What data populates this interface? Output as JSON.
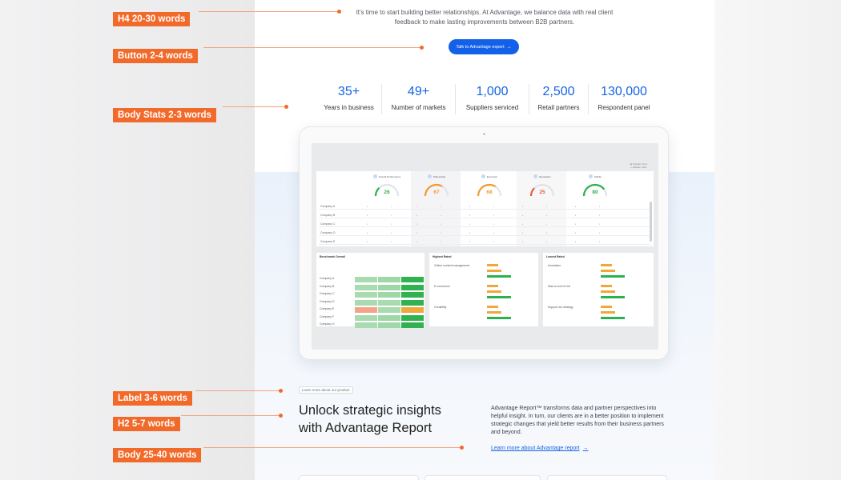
{
  "annotations": [
    {
      "label": "H4 20-30 words"
    },
    {
      "label": "Button 2-4 words"
    },
    {
      "label": "Body Stats 2-3 words"
    },
    {
      "label": "Label 3-6 words"
    },
    {
      "label": "H2 5-7 words"
    },
    {
      "label": "Body 25-40 words"
    }
  ],
  "hero": {
    "body": "It's time to start building better relationships. At Advantage, we balance data with real client feedback to make lasting improvements between B2B partners.",
    "cta_label": "Talk to Advantage expert",
    "cta_arrow": "→"
  },
  "stats": [
    {
      "value": "35+",
      "label": "Years in business"
    },
    {
      "value": "49+",
      "label": "Number of markets"
    },
    {
      "value": "1,000",
      "label": "Suppliers serviced"
    },
    {
      "value": "2,500",
      "label": "Retail partners"
    },
    {
      "value": "130,000",
      "label": "Respondent panel"
    }
  ],
  "dashboard": {
    "legend": [
      "Supplier View",
      "Retailer View"
    ],
    "metrics": [
      {
        "name": "Overall Performance",
        "value": "26",
        "color": "#2bb24c"
      },
      {
        "name": "Partnership",
        "value": "67",
        "color": "#f29a2e"
      },
      {
        "name": "Execution",
        "value": "68",
        "color": "#f29a2e"
      },
      {
        "name": "Reputation",
        "value": "25",
        "color": "#ef5a3c"
      },
      {
        "name": "Mobile",
        "value": "80",
        "color": "#2bb24c"
      }
    ],
    "companies": [
      "Company A",
      "Company B",
      "Company C",
      "Company D",
      "Company E"
    ],
    "benchmark": {
      "title": "Benchmark Overall",
      "companies": [
        "Company A",
        "Company B",
        "Company C",
        "Company D",
        "Company E",
        "Company F",
        "Company G"
      ]
    },
    "highest": {
      "title": "Highest Rated",
      "items": [
        "Online content management",
        "E-commerce",
        "Credibility"
      ]
    },
    "lowest": {
      "title": "Lowest Rated",
      "items": [
        "Innovation",
        "Start-to-end to full",
        "Support our strategy"
      ]
    }
  },
  "section": {
    "label": "Learn more about our product",
    "heading": "Unlock strategic insights with Advantage Report",
    "body": "Advantage Report™ transforms data and partner perspectives into helpful insight. In turn, our clients are in a better position to implement strategic changes that yield better results from their business partners and beyond.",
    "link": "Learn more about Advantage report",
    "link_arrow": "→"
  },
  "colors": {
    "accent": "#1564e6",
    "annotation": "#f26a2a"
  }
}
